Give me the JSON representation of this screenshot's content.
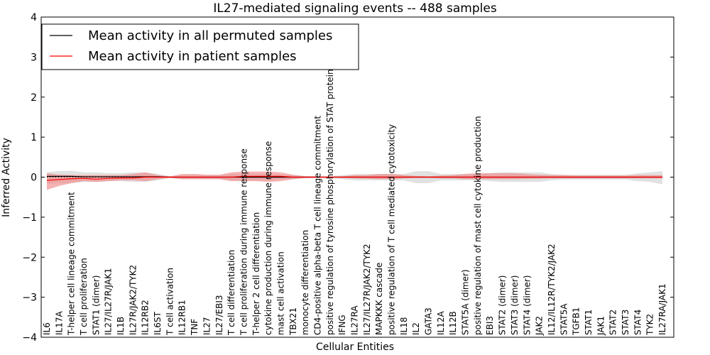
{
  "chart_data": {
    "type": "line",
    "title": "IL27-mediated signaling events -- 488 samples",
    "xlabel": "Cellular Entities",
    "ylabel": "Inferred Activity",
    "ylim": [
      -4,
      4
    ],
    "yticks": [
      "4",
      "3",
      "2",
      "1",
      "0",
      "−1",
      "−2",
      "−3",
      "−4"
    ],
    "legend_position": "top-left",
    "categories": [
      "IL6",
      "IL17A",
      "T-helper cell lineage commitment",
      "T cell proliferation",
      "STAT1 (dimer)",
      "IL27/IL27R/JAK1",
      "IL1B",
      "IL27R/JAK2/TYK2",
      "IL12RB2",
      "IL6ST",
      "T cell activation",
      "IL12RB1",
      "TNF",
      "IL27",
      "IL27/EBI3",
      "T cell differentiation",
      "T cell proliferation during immune response",
      "T-helper 2 cell differentiation",
      "cytokine production during immune response",
      "mast cell activation",
      "TBX21",
      "monocyte differentiation",
      "CD4-positive alpha-beta T cell lineage commitment",
      "positive regulation of tyrosine phosphorylation of STAT protein",
      "IFNG",
      "IL27RA",
      "IL27/IL27R/JAK2/TYK2",
      "MAPKKK cascade",
      "positive regulation of T cell mediated cytotoxicity",
      "IL18",
      "IL2",
      "GATA3",
      "IL12A",
      "IL12B",
      "STAT5A (dimer)",
      "positive regulation of mast cell cytokine production",
      "EBI3",
      "STAT2 (dimer)",
      "STAT3 (dimer)",
      "STAT4 (dimer)",
      "JAK2",
      "IL12/IL12R/TYK2/JAK2",
      "STAT5A",
      "TGFB1",
      "STAT1",
      "JAK1",
      "STAT2",
      "STAT3",
      "STAT4",
      "TYK2",
      "IL27RA/JAK1"
    ],
    "series": [
      {
        "name": "Mean activity in all permuted samples",
        "color": "#000000",
        "values": [
          0.02,
          0.02,
          0.02,
          0.01,
          0.01,
          0.01,
          0.01,
          0.01,
          0.01,
          0.01,
          0,
          0,
          0,
          0,
          0,
          0,
          0,
          0,
          0,
          0,
          0,
          0,
          0,
          0,
          0,
          0,
          0,
          0,
          0,
          0,
          0,
          0,
          0,
          0,
          0,
          0,
          0,
          0,
          0,
          0,
          0,
          0,
          0,
          0,
          0,
          0,
          0,
          0,
          0,
          0,
          0
        ],
        "band_low": [
          -0.17,
          -0.15,
          -0.14,
          -0.12,
          -0.12,
          -0.1,
          -0.1,
          -0.12,
          -0.12,
          -0.08,
          -0.02,
          -0.05,
          -0.05,
          -0.05,
          -0.05,
          -0.08,
          -0.08,
          -0.08,
          -0.08,
          -0.06,
          -0.05,
          -0.03,
          -0.02,
          -0.02,
          -0.05,
          -0.08,
          -0.08,
          -0.08,
          -0.08,
          -0.08,
          -0.15,
          -0.15,
          -0.08,
          -0.08,
          -0.08,
          -0.08,
          -0.1,
          -0.12,
          -0.12,
          -0.12,
          -0.12,
          -0.08,
          -0.06,
          -0.06,
          -0.06,
          -0.06,
          -0.06,
          -0.06,
          -0.1,
          -0.12,
          -0.18
        ],
        "band_high": [
          0.12,
          0.15,
          0.16,
          0.12,
          0.12,
          0.1,
          0.1,
          0.12,
          0.12,
          0.08,
          0.02,
          0.05,
          0.05,
          0.05,
          0.05,
          0.08,
          0.08,
          0.08,
          0.08,
          0.06,
          0.05,
          0.03,
          0.02,
          0.02,
          0.05,
          0.08,
          0.08,
          0.08,
          0.08,
          0.08,
          0.15,
          0.15,
          0.08,
          0.08,
          0.08,
          0.08,
          0.1,
          0.12,
          0.12,
          0.12,
          0.12,
          0.08,
          0.06,
          0.06,
          0.06,
          0.06,
          0.06,
          0.06,
          0.1,
          0.12,
          0.15
        ]
      },
      {
        "name": "Mean activity in patient samples",
        "color": "#ff0000",
        "values": [
          -0.08,
          -0.06,
          -0.04,
          -0.03,
          -0.05,
          -0.03,
          -0.02,
          -0.02,
          0,
          0,
          0,
          0,
          0,
          0,
          0,
          0,
          0.02,
          0.02,
          0.02,
          0.02,
          0,
          0,
          0,
          0,
          0,
          0,
          0,
          0,
          0,
          0,
          0,
          0,
          0,
          0,
          0,
          0,
          0,
          0,
          0,
          0,
          0,
          0,
          0,
          0,
          0,
          0,
          0,
          0,
          0,
          0,
          0
        ],
        "band_low": [
          -0.32,
          -0.22,
          -0.15,
          -0.1,
          -0.12,
          -0.1,
          -0.08,
          -0.08,
          -0.1,
          -0.05,
          -0.02,
          -0.05,
          -0.05,
          -0.05,
          -0.05,
          -0.1,
          -0.1,
          -0.1,
          -0.12,
          -0.1,
          -0.05,
          -0.02,
          -0.02,
          -0.01,
          -0.02,
          -0.03,
          -0.04,
          -0.05,
          -0.05,
          -0.03,
          -0.02,
          -0.02,
          -0.03,
          -0.03,
          -0.05,
          -0.05,
          -0.05,
          -0.05,
          -0.05,
          -0.04,
          -0.04,
          -0.03,
          -0.03,
          -0.03,
          -0.03,
          -0.03,
          -0.03,
          -0.03,
          -0.03,
          -0.03,
          -0.03
        ],
        "band_high": [
          0.1,
          0.06,
          0.05,
          0.05,
          0.05,
          0.05,
          0.05,
          0.08,
          0.12,
          0.05,
          0.02,
          0.08,
          0.08,
          0.06,
          0.06,
          0.12,
          0.14,
          0.14,
          0.14,
          0.12,
          0.06,
          0.02,
          0.02,
          0.01,
          0.02,
          0.05,
          0.05,
          0.08,
          0.08,
          0.05,
          0.03,
          0.02,
          0.04,
          0.05,
          0.08,
          0.1,
          0.1,
          0.1,
          0.1,
          0.08,
          0.06,
          0.05,
          0.05,
          0.04,
          0.04,
          0.04,
          0.04,
          0.04,
          0.05,
          0.05,
          0.05
        ]
      }
    ]
  }
}
